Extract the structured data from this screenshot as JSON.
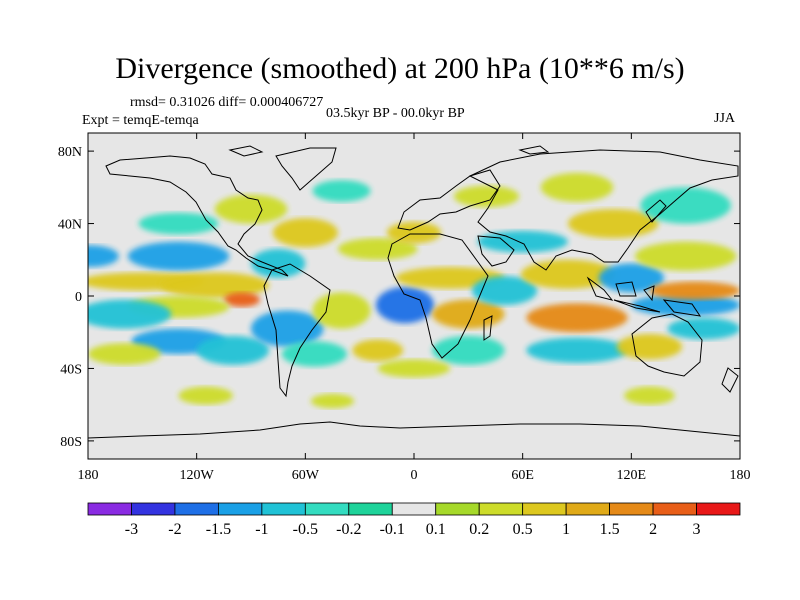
{
  "title": "Divergence (smoothed) at 200 hPa (10**6 m/s)",
  "stats": "rmsd= 0.31026 diff= 0.000406727",
  "experiment": "Expt = temqE-temqa",
  "period": "03.5kyr BP - 00.0kyr BP",
  "season": "JJA",
  "colors": {
    "background": "#e6e6e6",
    "coastline": "#000000",
    "palette": [
      "#8a2be2",
      "#3333e0",
      "#1e6fe6",
      "#1aa0e6",
      "#20c2d6",
      "#33dcc0",
      "#1ed39a",
      "#e6e6e6",
      "#a6d92a",
      "#cddc2a",
      "#ddc81f",
      "#e0aa18",
      "#e58a18",
      "#e85e18",
      "#e81818"
    ]
  },
  "chart_data": {
    "type": "filled-contour-map",
    "variable": "Divergence (smoothed) at 200 hPa",
    "units": "10**6 m/s",
    "projection": "cylindrical equidistant",
    "lon_range": [
      -180,
      180
    ],
    "lat_range": [
      -90,
      90
    ],
    "x_ticks": [
      "180",
      "120W",
      "60W",
      "0",
      "60E",
      "120E",
      "180"
    ],
    "y_ticks": [
      "80N",
      "40N",
      "0",
      "40S",
      "80S"
    ],
    "colorbar_labels": [
      "-3",
      "-2",
      "-1.5",
      "-1",
      "-0.5",
      "-0.2",
      "-0.1",
      "0.1",
      "0.2",
      "0.5",
      "1",
      "1.5",
      "2",
      "3"
    ],
    "features": [
      {
        "lon": -179,
        "lat": 22,
        "rx": 16,
        "ry": 6,
        "level": 3
      },
      {
        "lon": -130,
        "lat": 22,
        "rx": 28,
        "ry": 8,
        "level": 3
      },
      {
        "lon": -150,
        "lat": 8,
        "rx": 34,
        "ry": 5,
        "level": 10
      },
      {
        "lon": -110,
        "lat": 6,
        "rx": 30,
        "ry": 7,
        "level": 10
      },
      {
        "lon": -95,
        "lat": -2,
        "rx": 10,
        "ry": 4,
        "level": 13
      },
      {
        "lon": -130,
        "lat": -6,
        "rx": 28,
        "ry": 6,
        "level": 9
      },
      {
        "lon": -160,
        "lat": -10,
        "rx": 26,
        "ry": 8,
        "level": 4
      },
      {
        "lon": -130,
        "lat": -25,
        "rx": 26,
        "ry": 7,
        "level": 3
      },
      {
        "lon": -100,
        "lat": -30,
        "rx": 20,
        "ry": 8,
        "level": 4
      },
      {
        "lon": -160,
        "lat": -32,
        "rx": 20,
        "ry": 6,
        "level": 9
      },
      {
        "lon": -70,
        "lat": -18,
        "rx": 20,
        "ry": 10,
        "level": 3
      },
      {
        "lon": -55,
        "lat": -32,
        "rx": 18,
        "ry": 7,
        "level": 5
      },
      {
        "lon": -40,
        "lat": -8,
        "rx": 16,
        "ry": 10,
        "level": 9
      },
      {
        "lon": -75,
        "lat": 18,
        "rx": 15,
        "ry": 8,
        "level": 4
      },
      {
        "lon": -60,
        "lat": 35,
        "rx": 18,
        "ry": 8,
        "level": 10
      },
      {
        "lon": -20,
        "lat": 26,
        "rx": 22,
        "ry": 6,
        "level": 9
      },
      {
        "lon": -90,
        "lat": 48,
        "rx": 20,
        "ry": 8,
        "level": 9
      },
      {
        "lon": -40,
        "lat": 58,
        "rx": 16,
        "ry": 6,
        "level": 5
      },
      {
        "lon": -5,
        "lat": -5,
        "rx": 16,
        "ry": 10,
        "level": 2
      },
      {
        "lon": 30,
        "lat": -10,
        "rx": 20,
        "ry": 8,
        "level": 11
      },
      {
        "lon": 20,
        "lat": 10,
        "rx": 30,
        "ry": 6,
        "level": 10
      },
      {
        "lon": 50,
        "lat": 3,
        "rx": 18,
        "ry": 8,
        "level": 4
      },
      {
        "lon": 90,
        "lat": -12,
        "rx": 28,
        "ry": 8,
        "level": 12
      },
      {
        "lon": 85,
        "lat": 12,
        "rx": 26,
        "ry": 8,
        "level": 10
      },
      {
        "lon": 120,
        "lat": 10,
        "rx": 18,
        "ry": 8,
        "level": 3
      },
      {
        "lon": 150,
        "lat": -5,
        "rx": 30,
        "ry": 6,
        "level": 3
      },
      {
        "lon": 155,
        "lat": 3,
        "rx": 25,
        "ry": 5,
        "level": 12
      },
      {
        "lon": 150,
        "lat": 22,
        "rx": 28,
        "ry": 8,
        "level": 9
      },
      {
        "lon": 110,
        "lat": 40,
        "rx": 25,
        "ry": 8,
        "level": 10
      },
      {
        "lon": 60,
        "lat": 30,
        "rx": 25,
        "ry": 6,
        "level": 4
      },
      {
        "lon": 150,
        "lat": 50,
        "rx": 25,
        "ry": 10,
        "level": 5
      },
      {
        "lon": 90,
        "lat": 60,
        "rx": 20,
        "ry": 8,
        "level": 9
      },
      {
        "lon": 40,
        "lat": 55,
        "rx": 18,
        "ry": 6,
        "level": 9
      },
      {
        "lon": 0,
        "lat": 35,
        "rx": 15,
        "ry": 6,
        "level": 10
      },
      {
        "lon": 30,
        "lat": -30,
        "rx": 20,
        "ry": 8,
        "level": 5
      },
      {
        "lon": 90,
        "lat": -30,
        "rx": 28,
        "ry": 7,
        "level": 4
      },
      {
        "lon": 130,
        "lat": -28,
        "rx": 18,
        "ry": 7,
        "level": 10
      },
      {
        "lon": 160,
        "lat": -18,
        "rx": 20,
        "ry": 6,
        "level": 4
      },
      {
        "lon": -20,
        "lat": -30,
        "rx": 14,
        "ry": 6,
        "level": 10
      },
      {
        "lon": 0,
        "lat": -40,
        "rx": 20,
        "ry": 5,
        "level": 9
      },
      {
        "lon": -130,
        "lat": 40,
        "rx": 22,
        "ry": 6,
        "level": 5
      },
      {
        "lon": 130,
        "lat": -55,
        "rx": 14,
        "ry": 5,
        "level": 9
      },
      {
        "lon": -115,
        "lat": -55,
        "rx": 15,
        "ry": 5,
        "level": 9
      },
      {
        "lon": -45,
        "lat": -58,
        "rx": 12,
        "ry": 4,
        "level": 9
      }
    ]
  }
}
